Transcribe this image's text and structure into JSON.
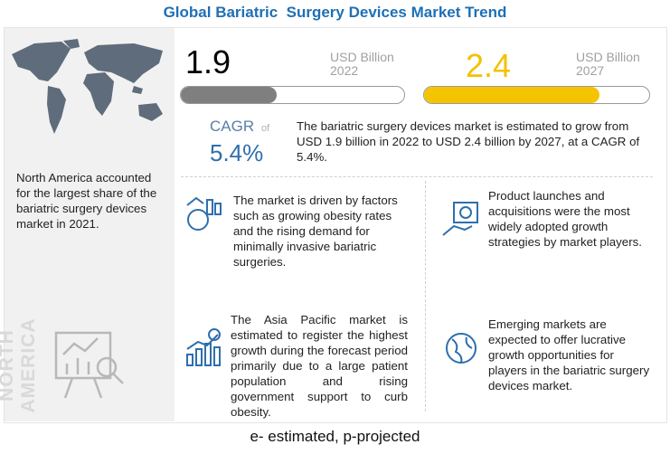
{
  "header": {
    "title": "Global Bariatric  Surgery Devices Market Trend"
  },
  "market_size": [
    {
      "value": "1.9",
      "unit": "USD Billion",
      "year": "2022"
    },
    {
      "value": "2.4",
      "unit": "USD Billion",
      "year": "2027"
    }
  ],
  "cagr": {
    "label": "CAGR",
    "of": "of",
    "value": "5.4%",
    "text": "The bariatric surgery devices market is estimated to grow from USD 1.9 billion in 2022 to USD 2.4 billion by 2027, at a CAGR of 5.4%."
  },
  "region": {
    "text": "North America accounted for the largest share of the bariatric surgery devices market in 2021.",
    "label": "NORTH AMERICA"
  },
  "insights": [
    "The market is driven by factors such as growing obesity rates and the rising demand for minimally invasive bariatric surgeries.",
    "Product launches and acquisitions were the most widely adopted growth strategies by market players.",
    "The Asia Pacific market is estimated to register the highest growth during the forecast period primarily due to a large patient population and rising government support to curb obesity.",
    "Emerging markets are expected to offer lucrative growth opportunities for players in the bariatric surgery devices market."
  ],
  "footer": {
    "note": "e- estimated, p-projected"
  }
}
